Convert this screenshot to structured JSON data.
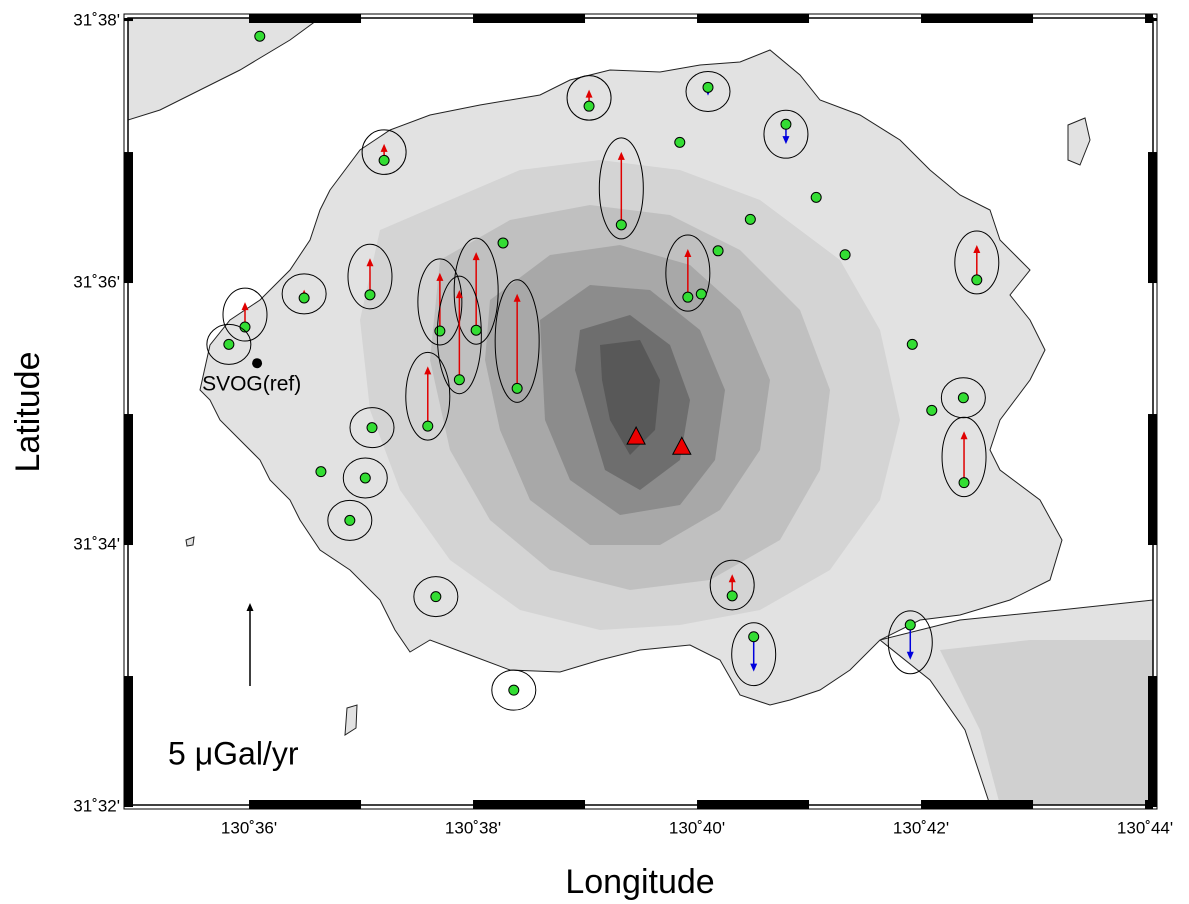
{
  "chart_data": {
    "type": "map",
    "xlabel": "Longitude",
    "ylabel": "Latitude",
    "xlim": [
      130.58199,
      130.73452
    ],
    "ylim": [
      31.53359,
      31.63372
    ],
    "xticks": [
      {
        "value": 130.6,
        "label": "130˚36'"
      },
      {
        "value": 130.633333,
        "label": "130˚38'"
      },
      {
        "value": 130.666667,
        "label": "130˚40'"
      },
      {
        "value": 130.7,
        "label": "130˚42'"
      },
      {
        "value": 130.733333,
        "label": "130˚44'"
      }
    ],
    "yticks": [
      {
        "value": 31.533333,
        "label": "31˚32'"
      },
      {
        "value": 31.566667,
        "label": "31˚34'"
      },
      {
        "value": 31.6,
        "label": "31˚36'"
      },
      {
        "value": 31.633333,
        "label": "31˚38'"
      }
    ],
    "station_color": "#33dd33",
    "up_color": "#e00000",
    "down_color": "#0000dd",
    "reference": {
      "label": "SVOG(ref)",
      "lon": 130.6012,
      "lat": 31.5898
    },
    "vents": [
      {
        "lon": 130.6576,
        "lat": 31.5804
      },
      {
        "lon": 130.6644,
        "lat": 31.5791
      }
    ],
    "vent_color": "#ee0000",
    "scale": {
      "value": 5,
      "label": "5 μGal/yr"
    },
    "stations": [
      {
        "lon": 130.6016,
        "lat": 31.6314,
        "rate": null
      },
      {
        "lon": 130.6506,
        "lat": 31.6225,
        "rate": 1.0
      },
      {
        "lon": 130.6683,
        "lat": 31.6249,
        "rate": -0.5
      },
      {
        "lon": 130.6201,
        "lat": 31.6156,
        "rate": 1.0
      },
      {
        "lon": 130.6799,
        "lat": 31.6202,
        "rate": -1.2
      },
      {
        "lon": 130.6641,
        "lat": 31.6179,
        "rate": null
      },
      {
        "lon": 130.6554,
        "lat": 31.6074,
        "rate": 4.4
      },
      {
        "lon": 130.6844,
        "lat": 31.6109,
        "rate": null
      },
      {
        "lon": 130.6746,
        "lat": 31.6081,
        "rate": null
      },
      {
        "lon": 130.6378,
        "lat": 31.6051,
        "rate": null
      },
      {
        "lon": 130.6698,
        "lat": 31.6041,
        "rate": null
      },
      {
        "lon": 130.6887,
        "lat": 31.6036,
        "rate": null
      },
      {
        "lon": 130.7083,
        "lat": 31.6004,
        "rate": 2.1
      },
      {
        "lon": 130.6082,
        "lat": 31.5981,
        "rate": 0.5
      },
      {
        "lon": 130.618,
        "lat": 31.5985,
        "rate": 2.2
      },
      {
        "lon": 130.5994,
        "lat": 31.5944,
        "rate": 1.5
      },
      {
        "lon": 130.597,
        "lat": 31.5922,
        "rate": 0
      },
      {
        "lon": 130.6653,
        "lat": 31.5982,
        "rate": 2.9
      },
      {
        "lon": 130.6673,
        "lat": 31.5986,
        "rate": null
      },
      {
        "lon": 130.6284,
        "lat": 31.5939,
        "rate": 3.5
      },
      {
        "lon": 130.6338,
        "lat": 31.594,
        "rate": 4.7
      },
      {
        "lon": 130.6313,
        "lat": 31.5877,
        "rate": 5.4
      },
      {
        "lon": 130.6399,
        "lat": 31.5866,
        "rate": 5.7
      },
      {
        "lon": 130.6266,
        "lat": 31.5818,
        "rate": 3.6
      },
      {
        "lon": 130.6183,
        "lat": 31.5816,
        "rate": 0
      },
      {
        "lon": 130.6987,
        "lat": 31.5922,
        "rate": null
      },
      {
        "lon": 130.7016,
        "lat": 31.5838,
        "rate": null
      },
      {
        "lon": 130.7063,
        "lat": 31.5854,
        "rate": 0
      },
      {
        "lon": 130.7064,
        "lat": 31.5746,
        "rate": 3.1
      },
      {
        "lon": 130.6107,
        "lat": 31.576,
        "rate": null
      },
      {
        "lon": 130.6173,
        "lat": 31.5752,
        "rate": 0
      },
      {
        "lon": 130.615,
        "lat": 31.5698,
        "rate": 0
      },
      {
        "lon": 130.6278,
        "lat": 31.5601,
        "rate": 0
      },
      {
        "lon": 130.6719,
        "lat": 31.5602,
        "rate": 1.3
      },
      {
        "lon": 130.6751,
        "lat": 31.555,
        "rate": -2.1
      },
      {
        "lon": 130.6984,
        "lat": 31.5565,
        "rate": -2.1
      },
      {
        "lon": 130.6394,
        "lat": 31.5482,
        "rate": 0
      }
    ]
  }
}
